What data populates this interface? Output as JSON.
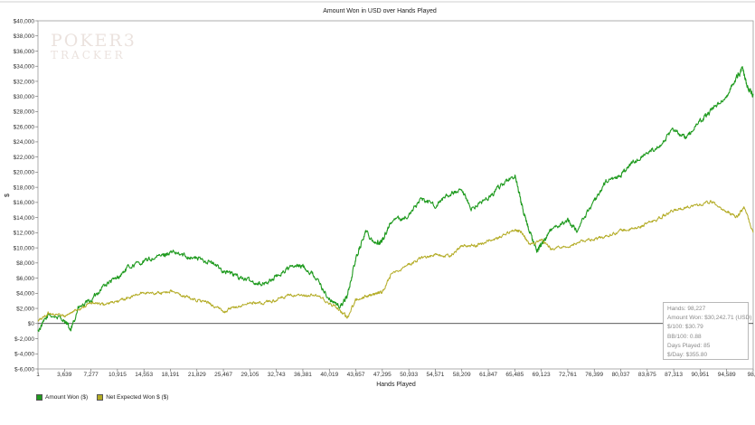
{
  "chart_data": {
    "type": "line",
    "title": "Amount Won in USD over Hands Played",
    "xlabel": "Hands Played",
    "ylabel": "$",
    "xlim": [
      1,
      98227
    ],
    "ylim": [
      -6000,
      40000
    ],
    "y_ticks": [
      "$40,000",
      "$38,000",
      "$36,000",
      "$34,000",
      "$32,000",
      "$30,000",
      "$28,000",
      "$26,000",
      "$24,000",
      "$22,000",
      "$20,000",
      "$18,000",
      "$16,000",
      "$14,000",
      "$12,000",
      "$10,000",
      "$8,000",
      "$6,000",
      "$4,000",
      "$2,000",
      "$0",
      "$-2,000",
      "$-4,000",
      "$-6,000"
    ],
    "x_ticks": [
      "1",
      "3,639",
      "7,277",
      "10,915",
      "14,553",
      "18,191",
      "21,829",
      "25,467",
      "29,105",
      "32,743",
      "36,381",
      "40,019",
      "43,657",
      "47,295",
      "50,933",
      "54,571",
      "58,209",
      "61,847",
      "65,485",
      "69,123",
      "72,761",
      "76,399",
      "80,037",
      "83,675",
      "87,313",
      "90,951",
      "94,589",
      "98,2"
    ],
    "grid": "off",
    "legend_placement": "bottom-left",
    "series": [
      {
        "name": "Amount Won ($)",
        "color": "#1e9a1e",
        "x": [
          1,
          1500,
          3639,
          4500,
          5500,
          7277,
          9000,
          10915,
          12500,
          14553,
          16500,
          18191,
          20000,
          21829,
          23500,
          25467,
          27000,
          29105,
          31000,
          32743,
          34500,
          36381,
          38000,
          40019,
          41500,
          42500,
          43657,
          45000,
          46500,
          47295,
          48500,
          50933,
          52500,
          54571,
          56500,
          58209,
          59500,
          61847,
          63500,
          65485,
          66500,
          67500,
          68500,
          69123,
          70500,
          72761,
          74000,
          76399,
          78000,
          80037,
          81500,
          83675,
          85500,
          87313,
          89000,
          90951,
          92500,
          94589,
          96000,
          96800,
          97500,
          98227
        ],
        "values": [
          -1000,
          1200,
          500,
          -1000,
          2000,
          3000,
          5000,
          6000,
          7500,
          8200,
          8800,
          9400,
          9000,
          8600,
          8200,
          7000,
          6400,
          5600,
          5200,
          6200,
          7400,
          7600,
          6300,
          3200,
          2200,
          3700,
          8600,
          12200,
          10500,
          11000,
          13500,
          14200,
          16500,
          15600,
          17100,
          17400,
          15200,
          16600,
          18200,
          19600,
          15400,
          12100,
          9600,
          10500,
          12300,
          13600,
          12400,
          16100,
          18700,
          19600,
          21100,
          22600,
          23700,
          25600,
          24500,
          26700,
          28200,
          30100,
          32600,
          33700,
          31200,
          30200
        ]
      },
      {
        "name": "Net Expected Won $ ($)",
        "color": "#b3ab24",
        "x": [
          1,
          1500,
          3639,
          5500,
          7277,
          9000,
          10915,
          12500,
          14553,
          16500,
          18191,
          20000,
          21829,
          23500,
          25467,
          27000,
          29105,
          31000,
          32743,
          34500,
          36381,
          38000,
          40019,
          41500,
          42500,
          43657,
          45000,
          46500,
          47295,
          48500,
          50933,
          52500,
          54571,
          56500,
          58209,
          60000,
          61847,
          63500,
          65485,
          66500,
          67500,
          69123,
          70500,
          72761,
          74500,
          76399,
          78000,
          80037,
          82000,
          83675,
          85500,
          87313,
          89000,
          90951,
          92500,
          94589,
          96000,
          97000,
          98227
        ],
        "values": [
          300,
          1400,
          1000,
          1900,
          2700,
          2500,
          2900,
          3400,
          4100,
          4000,
          4300,
          3600,
          3100,
          2700,
          1600,
          2100,
          2700,
          2700,
          3100,
          3700,
          3600,
          3800,
          2700,
          1700,
          800,
          3200,
          3600,
          4000,
          4200,
          6500,
          7800,
          8600,
          9100,
          8900,
          10300,
          10300,
          10900,
          11400,
          12400,
          12000,
          10400,
          11000,
          9800,
          10200,
          10800,
          11200,
          11500,
          12300,
          12500,
          13200,
          14000,
          14900,
          15400,
          15700,
          16100,
          14700,
          14100,
          15400,
          12000
        ]
      }
    ]
  },
  "stats": {
    "hands": "Hands: 98,227",
    "amount_won": "Amount Won: $30,242.71 (USD)",
    "dollars_per_100": "$/100: $30.79",
    "bb_per_100": "BB/100: 0.88",
    "days_played": "Days Played: 85",
    "dollars_per_day": "$/Day: $355.80"
  },
  "logo": {
    "line1": "POKER3",
    "line2": "TRACKER"
  }
}
